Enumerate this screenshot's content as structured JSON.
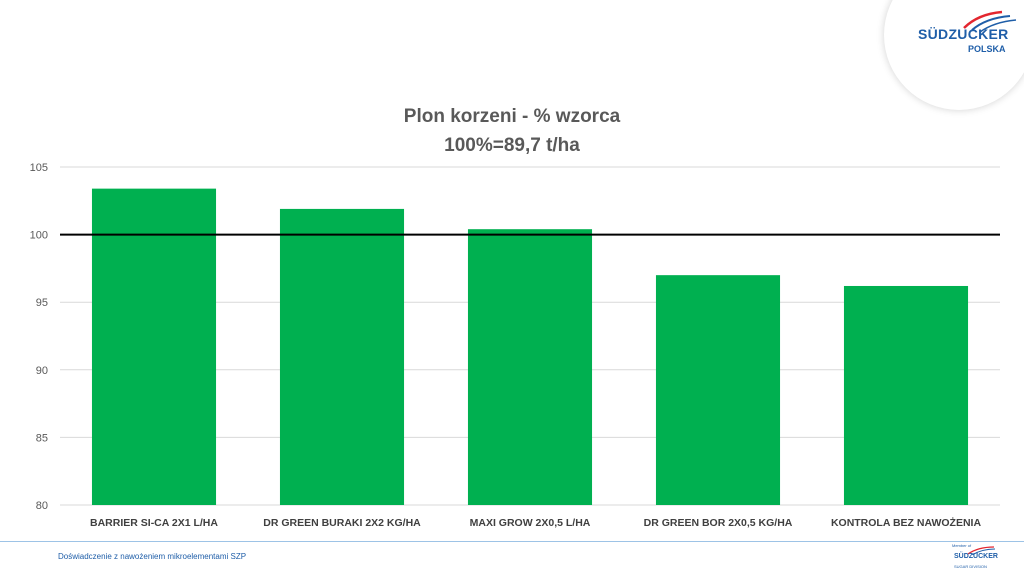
{
  "brand": {
    "name": "SÜDZUCKER",
    "sub": "POLSKA",
    "footer_member": "Member of",
    "footer_name": "SÜDZUCKER",
    "footer_sub": "SUGAR   DIVISION",
    "color": "#1f5ea8",
    "accent_color": "#e3262f"
  },
  "footer": {
    "text": "Doświadczenie z nawożeniem mikroelementami SZP"
  },
  "chart_data": {
    "type": "bar",
    "title": "Plon korzeni - % wzorca",
    "subtitle": "100%=89,7 t/ha",
    "categories": [
      "BARRIER SI-CA 2X1 L/HA",
      "DR GREEN BURAKI 2X2 KG/HA",
      "MAXI GROW 2X0,5 L/HA",
      "DR GREEN BOR 2X0,5 KG/HA",
      "KONTROLA BEZ NAWOŻENIA"
    ],
    "values": [
      103.4,
      101.9,
      100.4,
      97.0,
      96.2
    ],
    "ylim": [
      80,
      105
    ],
    "yticks": [
      80,
      85,
      90,
      95,
      100,
      105
    ],
    "reference_line": 100,
    "bar_color": "#00b050",
    "reference_line_color": "#000000",
    "grid": true
  }
}
